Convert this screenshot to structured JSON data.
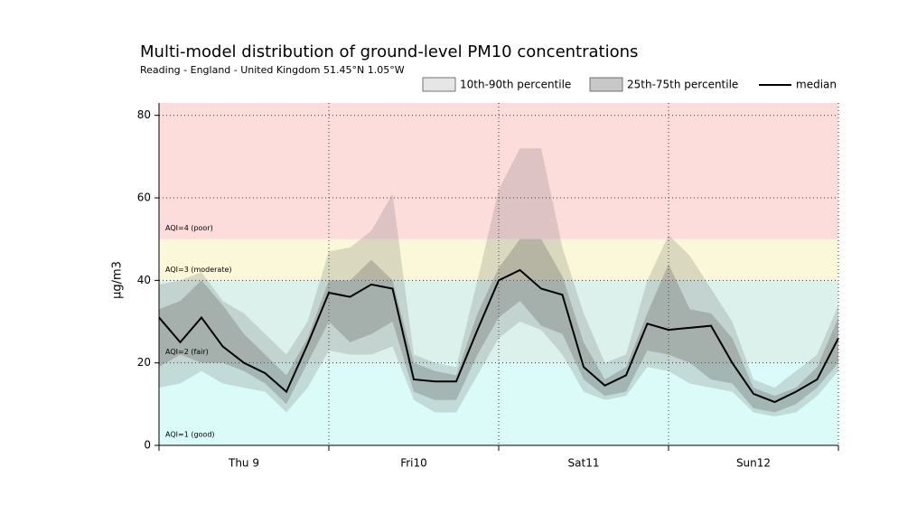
{
  "chart_data": {
    "type": "band",
    "title": "Multi-model distribution of ground-level PM10 concentrations",
    "subtitle": "Reading - England - United Kingdom 51.45°N 1.05°W",
    "ylabel": "µg/m3",
    "x": [
      0,
      3,
      6,
      9,
      12,
      15,
      18,
      21,
      24,
      27,
      30,
      33,
      36,
      39,
      42,
      45,
      48,
      51,
      54,
      57,
      60,
      63,
      66,
      69,
      72,
      75,
      78,
      81,
      84,
      87,
      90,
      93,
      96
    ],
    "xlim": [
      0,
      96
    ],
    "xticks": [
      {
        "value": 12,
        "label": "Thu 9"
      },
      {
        "value": 36,
        "label": "Fri10"
      },
      {
        "value": 60,
        "label": "Sat11"
      },
      {
        "value": 84,
        "label": "Sun12"
      }
    ],
    "xgrid": [
      0,
      24,
      48,
      72,
      96
    ],
    "ylim": [
      0,
      83
    ],
    "yticks": [
      0,
      20,
      40,
      60,
      80
    ],
    "grid": true,
    "aqi_bands": [
      {
        "label": "AQI=1 (good)",
        "min": 0,
        "color": "#dbfbf8"
      },
      {
        "label": "AQI=2 (fair)",
        "min": 20,
        "color": "#dcf1ec"
      },
      {
        "label": "AQI=3 (moderate)",
        "min": 40,
        "color": "#fbf7d9"
      },
      {
        "label": "AQI=4 (poor)",
        "min": 50,
        "color": "#fddcdc"
      }
    ],
    "series": [
      {
        "name": "10th-90th percentile",
        "color": "#e6e6e6",
        "lower": [
          14,
          15,
          18,
          15,
          14,
          13,
          8,
          14,
          23,
          22,
          22,
          24,
          11,
          8,
          8,
          17,
          26,
          30,
          28,
          22,
          13,
          11,
          12,
          19,
          18,
          15,
          14,
          13,
          8,
          7,
          8,
          12,
          18
        ],
        "upper": [
          39,
          40,
          42,
          35,
          32,
          27,
          22,
          30,
          47,
          48,
          52,
          61,
          22,
          20,
          19,
          40,
          62,
          72,
          72,
          48,
          32,
          20,
          22,
          40,
          51,
          46,
          38,
          30,
          16,
          14,
          18,
          22,
          34
        ]
      },
      {
        "name": "25th-75th percentile",
        "color": "#c8c8c8",
        "lower": [
          19,
          22,
          20,
          20,
          18,
          15,
          10,
          20,
          30,
          25,
          27,
          30,
          13,
          11,
          11,
          22,
          31,
          35,
          29,
          27,
          16,
          12,
          13,
          23,
          22,
          20,
          16,
          15,
          9,
          8,
          10,
          14,
          20
        ],
        "upper": [
          33,
          35,
          40,
          34,
          27,
          22,
          17,
          26,
          40,
          40,
          45,
          40,
          20,
          18,
          17,
          32,
          43,
          50,
          50,
          41,
          25,
          16,
          19,
          32,
          44,
          33,
          32,
          26,
          14,
          12,
          14,
          19,
          31
        ]
      },
      {
        "name": "median",
        "color": "#000000",
        "values": [
          31,
          25,
          31,
          24,
          20,
          17.5,
          13,
          24.5,
          37,
          36,
          39,
          38,
          16,
          15.5,
          15.5,
          28,
          40,
          42.5,
          38,
          36.5,
          19,
          14.5,
          17,
          29.5,
          28,
          28.5,
          29,
          20,
          12.5,
          10.5,
          13,
          16,
          26
        ]
      }
    ]
  }
}
